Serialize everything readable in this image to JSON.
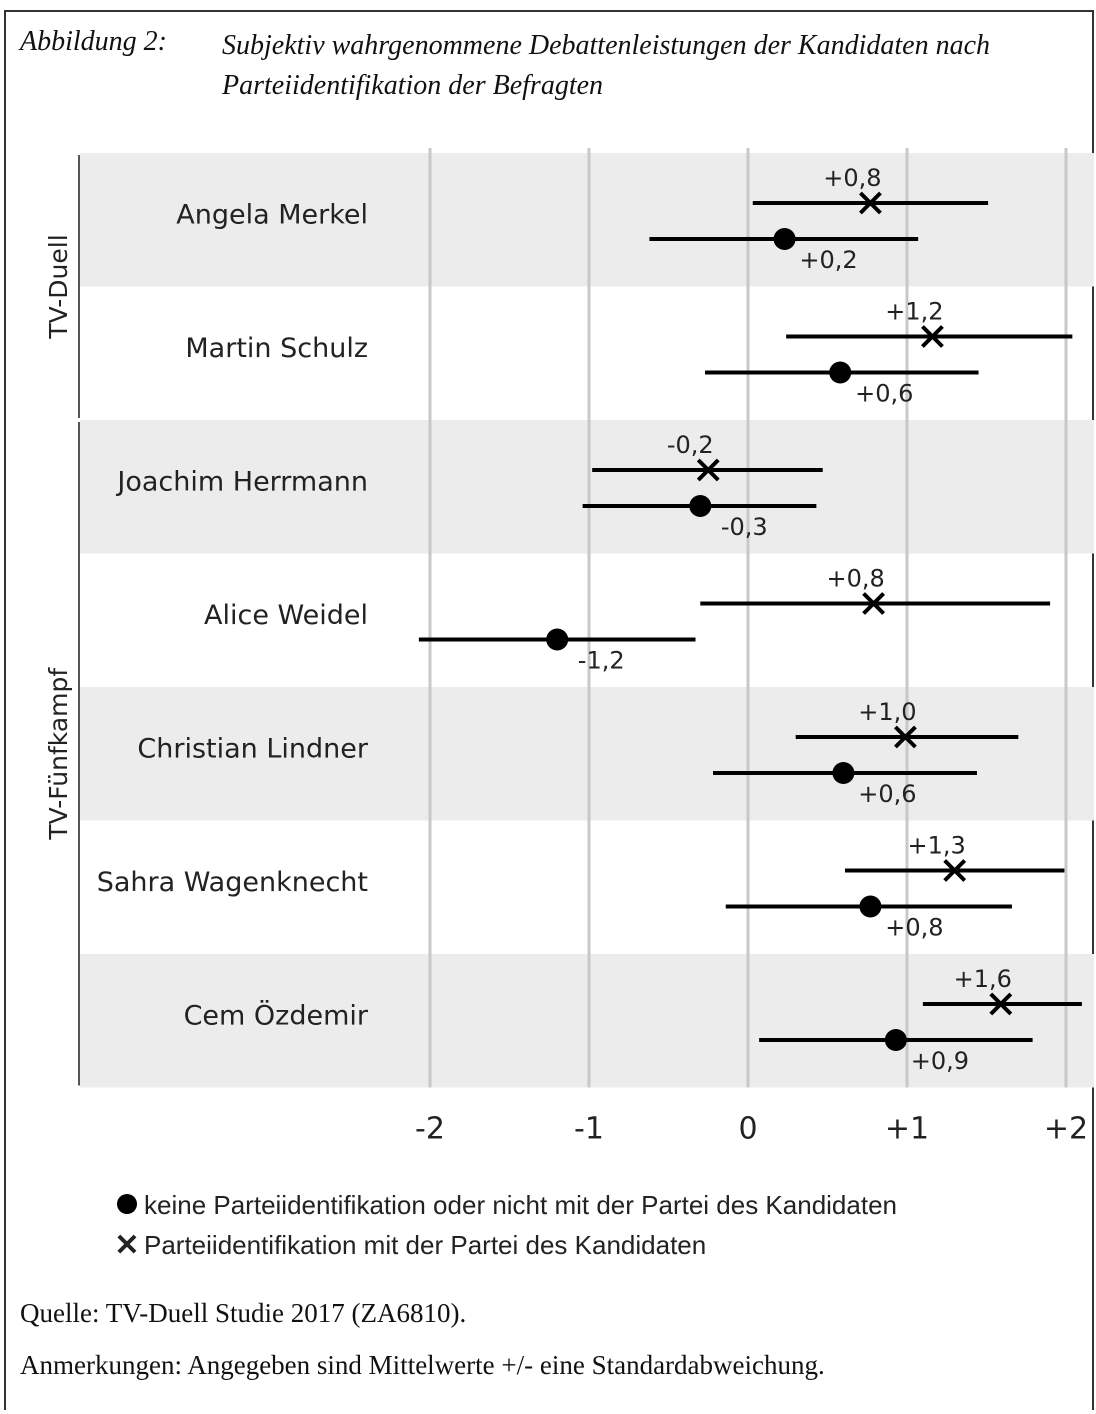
{
  "caption": {
    "label": "Abbildung 2:",
    "title": "Subjektiv wahrgenommene Debattenleistungen der Kandidaten nach Parteiidentifikation der Befragten"
  },
  "chart_data": {
    "type": "scatter",
    "title": "",
    "xlabel": "",
    "ylabel": "",
    "xlim": [
      -2,
      2
    ],
    "x_ticks": [
      -2,
      -1,
      0,
      1,
      2
    ],
    "x_tick_labels": [
      "-2",
      "-1",
      "0",
      "+1",
      "+2"
    ],
    "grid": "vertical",
    "groups": [
      {
        "label": "TV-Duell",
        "rows": [
          0,
          1
        ]
      },
      {
        "label": "TV-Fünfkampf",
        "rows": [
          2,
          3,
          4,
          5,
          6
        ]
      }
    ],
    "categories": [
      "Angela Merkel",
      "Martin Schulz",
      "Joachim Herrmann",
      "Alice Weidel",
      "Christian Lindner",
      "Sahra Wagenknecht",
      "Cem Özdemir"
    ],
    "series": [
      {
        "name": "Parteiidentifikation mit der Partei des Kandidaten",
        "marker": "cross",
        "values": [
          0.77,
          1.16,
          -0.25,
          0.79,
          0.99,
          1.3,
          1.59
        ],
        "error_low": [
          0.03,
          0.24,
          -0.98,
          -0.3,
          0.3,
          0.61,
          1.1
        ],
        "error_high": [
          1.51,
          2.04,
          0.47,
          1.9,
          1.7,
          1.99,
          2.1
        ],
        "labels": [
          "+0,8",
          "+1,2",
          "-0,2",
          "+0,8",
          "+1,0",
          "+1,3",
          "+1,6"
        ]
      },
      {
        "name": "keine Parteiidentifikation oder nicht mit der Partei des Kandidaten",
        "marker": "dot",
        "values": [
          0.23,
          0.58,
          -0.3,
          -1.2,
          0.6,
          0.77,
          0.93
        ],
        "error_low": [
          -0.62,
          -0.27,
          -1.04,
          -2.07,
          -0.22,
          -0.14,
          0.07
        ],
        "error_high": [
          1.07,
          1.45,
          0.43,
          -0.33,
          1.44,
          1.66,
          1.79
        ],
        "labels": [
          "+0,2",
          "+0,6",
          "-0,3",
          "-1,2",
          "+0,6",
          "+0,8",
          "+0,9"
        ]
      }
    ]
  },
  "legend": {
    "dot_label": "keine Parteiidentifikation oder nicht mit der Partei des Kandidaten",
    "cross_label": "Parteiidentifikation mit der Partei des Kandidaten"
  },
  "notes": {
    "source": "Quelle: TV-Duell Studie 2017 (ZA6810).",
    "remarks": "Anmerkungen: Angegeben sind Mittelwerte +/- eine Standardabweichung."
  }
}
